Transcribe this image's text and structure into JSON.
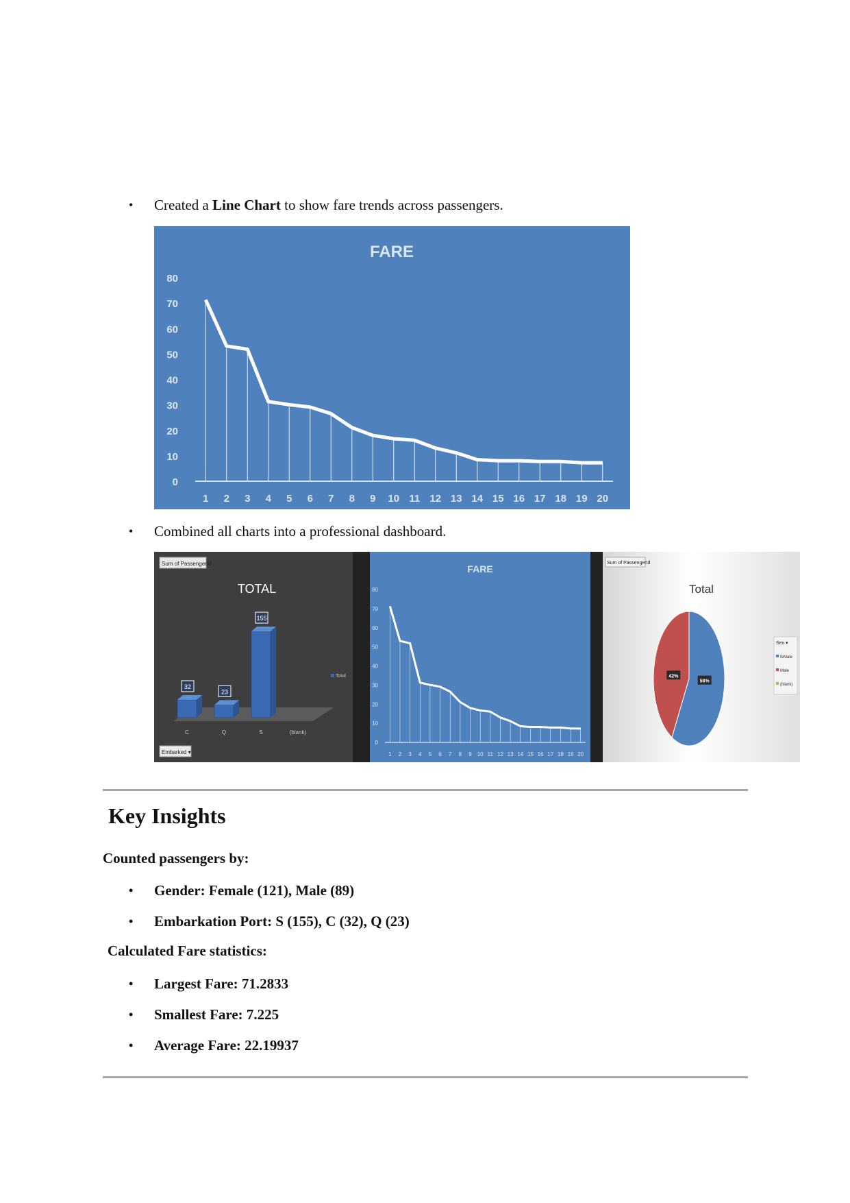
{
  "intro_bullet": {
    "before": "Created a ",
    "bold": "Line Chart",
    "after": " to show fare trends across passengers."
  },
  "dashboard_bullet": "Combined all charts into a professional dashboard.",
  "chart_data": [
    {
      "type": "line",
      "title": "FARE",
      "x": [
        1,
        2,
        3,
        4,
        5,
        6,
        7,
        8,
        9,
        10,
        11,
        12,
        13,
        14,
        15,
        16,
        17,
        18,
        19,
        20
      ],
      "values": [
        71.2833,
        53.1,
        51.86,
        31.27,
        30.07,
        29.125,
        26.55,
        21.075,
        18.0,
        16.7,
        16.1,
        13.0,
        11.13,
        8.46,
        8.05,
        8.05,
        7.75,
        7.75,
        7.25,
        7.225
      ],
      "ylim": [
        0,
        80
      ],
      "yticks": [
        0,
        10,
        20,
        30,
        40,
        50,
        60,
        70,
        80
      ],
      "grid": false,
      "drop_lines": true
    },
    {
      "type": "bar",
      "title": "TOTAL",
      "categories": [
        "C",
        "Q",
        "S",
        "(blank)"
      ],
      "values": [
        32,
        23,
        155,
        0
      ],
      "legend": [
        "Total"
      ],
      "field_button": "Sum of PassengerId",
      "filter_button": "Embarked"
    },
    {
      "type": "pie",
      "title": "Total",
      "slices": [
        {
          "label": "feMale",
          "percent": 58,
          "color": "#4f81bd"
        },
        {
          "label": "Male",
          "percent": 42,
          "color": "#c0504d"
        },
        {
          "label": "(blank)",
          "percent": 0,
          "color": "#9bbb59"
        }
      ],
      "legend_title": "Sex",
      "field_button": "Sum of PassengerId"
    }
  ],
  "insights": {
    "heading": "Key Insights",
    "counted_label": "Counted passengers by:",
    "counted_items": [
      "Gender: Female (121), Male (89)",
      "Embarkation Port: S (155), C (32), Q (23)"
    ],
    "fare_label": "Calculated Fare statistics:",
    "fare_items": [
      "Largest Fare: 71.2833",
      "Smallest Fare: 7.225",
      "Average Fare: 22.19937"
    ]
  },
  "colors": {
    "chart_blue": "#4f81bd",
    "female": "#4f81bd",
    "male": "#c0504d",
    "rule": "#a6a6a6"
  }
}
